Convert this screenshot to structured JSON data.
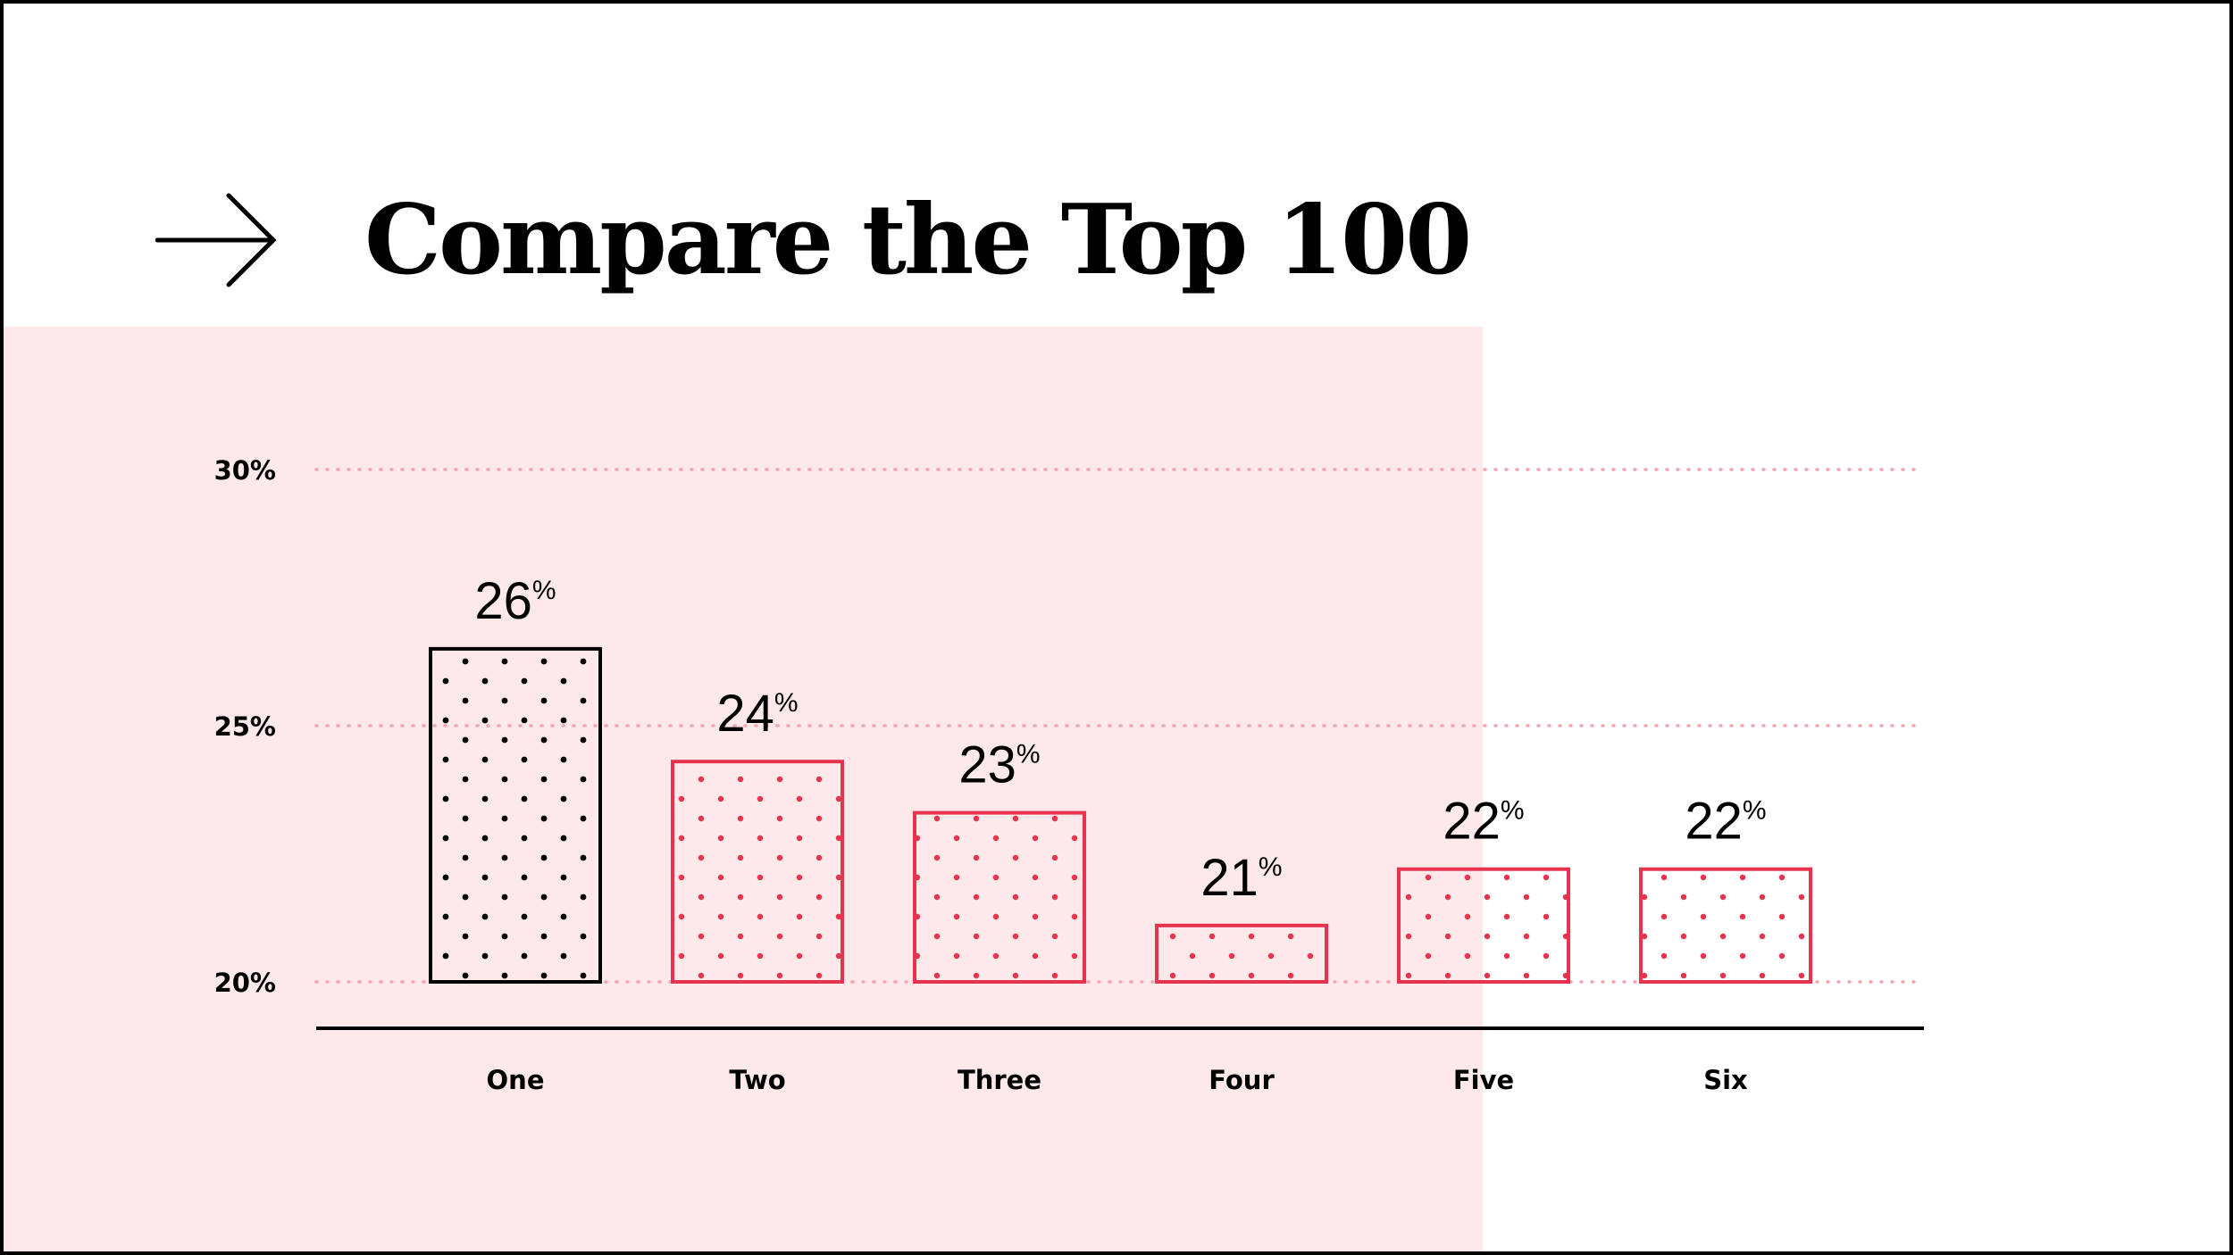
{
  "page": {
    "title": "Compare the Top 100",
    "arrow_icon": "arrow-right-icon"
  },
  "colors": {
    "background": "#ffffff",
    "panel": "#fde8ea",
    "highlight_bar": "#000000",
    "bar": "#e8334f",
    "grid": "#f2a6b2",
    "axis": "#000000"
  },
  "chart_data": {
    "type": "bar",
    "title": "",
    "xlabel": "",
    "ylabel": "",
    "categories": [
      "One",
      "Two",
      "Three",
      "Four",
      "Five",
      "Six"
    ],
    "values": [
      26.5,
      24.3,
      23.3,
      21.1,
      22.2,
      22.2
    ],
    "value_labels": [
      "26",
      "24",
      "23",
      "21",
      "22",
      "22"
    ],
    "value_suffix": "%",
    "highlight_index": 0,
    "ylim": [
      20,
      30
    ],
    "yticks": [
      20,
      25,
      30
    ],
    "ytick_labels": [
      "20%",
      "25%",
      "30%"
    ],
    "grid": true,
    "grid_style": "dotted",
    "legend": "none"
  }
}
